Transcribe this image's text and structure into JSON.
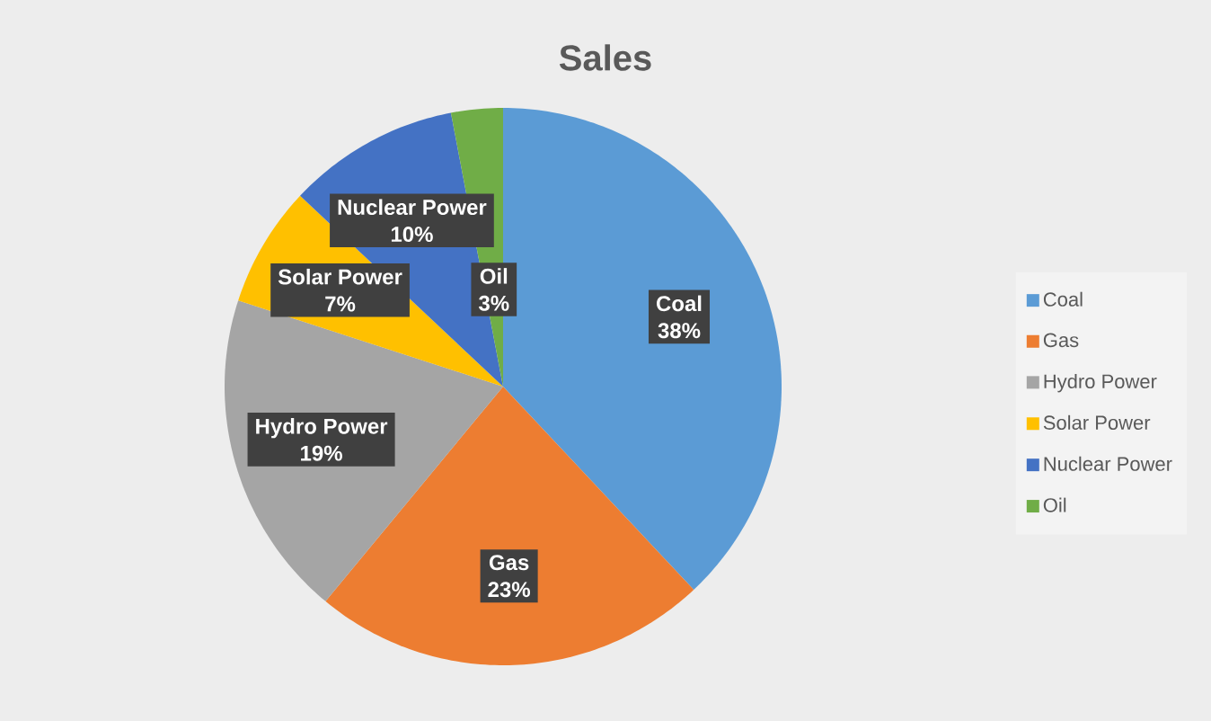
{
  "chart_data": {
    "type": "pie",
    "title": "Sales",
    "categories": [
      "Coal",
      "Gas",
      "Hydro Power",
      "Solar Power",
      "Nuclear Power",
      "Oil"
    ],
    "values": [
      38,
      23,
      19,
      7,
      10,
      3
    ],
    "colors": [
      "#5b9bd5",
      "#ed7d31",
      "#a5a5a5",
      "#ffc000",
      "#4472c4",
      "#70ad47"
    ],
    "value_labels": [
      "38%",
      "23%",
      "19%",
      "7%",
      "10%",
      "3%"
    ],
    "legend": "right"
  }
}
